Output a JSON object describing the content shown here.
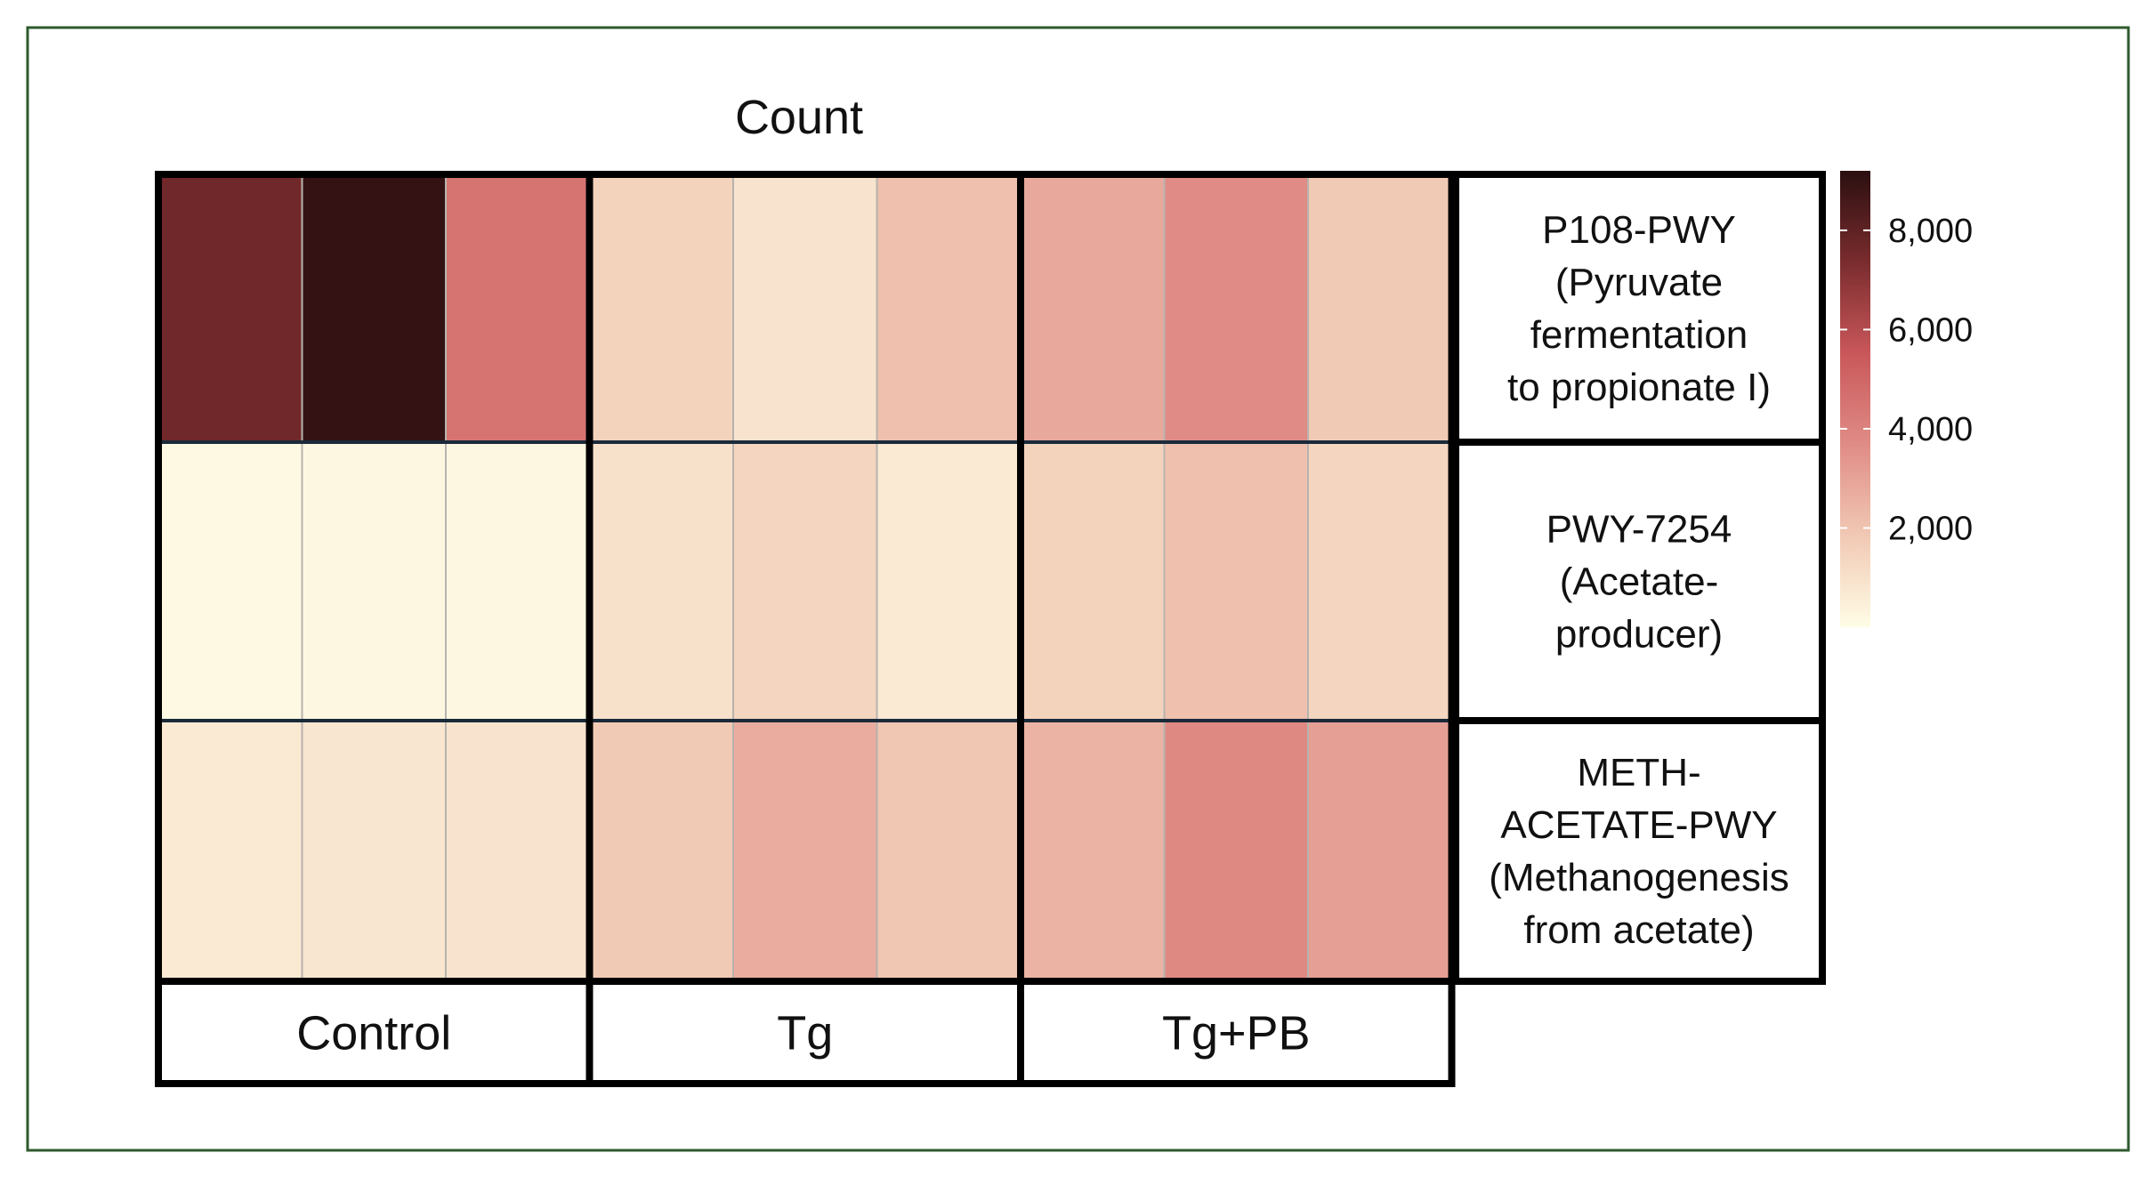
{
  "chart_data": {
    "type": "heatmap",
    "title": "Count",
    "groups": [
      "Control",
      "Tg",
      "Tg+PB"
    ],
    "samples_per_group": 3,
    "rows": [
      {
        "label_lines": [
          "P108-PWY",
          "(Pyruvate",
          "fermentation",
          "to propionate I)"
        ]
      },
      {
        "label_lines": [
          "PWY-7254",
          "(Acetate-",
          "producer)"
        ]
      },
      {
        "label_lines": [
          "METH-",
          "ACETATE-PWY",
          "(Methanogenesis",
          "from acetate)"
        ]
      }
    ],
    "values": [
      [
        7600,
        9000,
        4500,
        1500,
        900,
        2100,
        2800,
        3700,
        1800
      ],
      [
        150,
        200,
        200,
        1000,
        1400,
        700,
        1500,
        2100,
        1400
      ],
      [
        700,
        800,
        900,
        1800,
        2700,
        1900,
        2500,
        3800,
        3100
      ]
    ],
    "colorbar": {
      "min": 0,
      "max": 9200,
      "ticks": [
        8000,
        6000,
        4000,
        2000
      ],
      "tick_labels": [
        "8,000",
        "6,000",
        "4,000",
        "2,000"
      ],
      "colors": [
        "#fffde6",
        "#f1c9b4",
        "#e08c86",
        "#c9575a",
        "#7a2c2e",
        "#2b0f10"
      ]
    },
    "frame_color": "#2f5a2e"
  }
}
